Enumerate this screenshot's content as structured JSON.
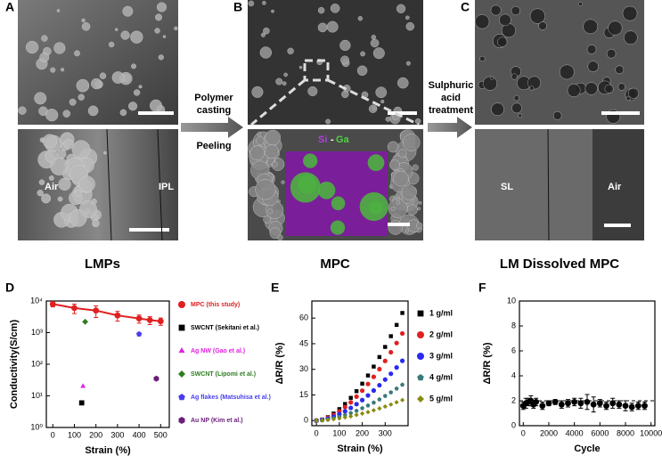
{
  "figure": {
    "panels": [
      {
        "label": "A",
        "caption": "LMPs",
        "image_labels": [
          "Air",
          "IPL"
        ]
      },
      {
        "label": "B",
        "caption": "MPC",
        "image_labels": [
          "Si",
          "-",
          "Ga"
        ]
      },
      {
        "label": "C",
        "caption": "LM Dissolved MPC",
        "image_labels": [
          "SL",
          "Air"
        ]
      }
    ],
    "arrows": [
      {
        "above": [
          "Polymer",
          "casting"
        ],
        "below": "Peeling"
      },
      {
        "above": [
          "Sulphuric",
          "acid",
          "treatment"
        ]
      }
    ]
  },
  "chart_data": [
    {
      "type": "scatter",
      "panel": "D",
      "x_label": "Strain (%)",
      "y_label": "Conductivity(S/cm)",
      "log_y": true,
      "xlim": [
        -30,
        540
      ],
      "xticks": [
        0,
        100,
        200,
        300,
        400,
        500
      ],
      "ylim": [
        1,
        10000
      ],
      "yticks": [
        {
          "value": 1,
          "label": "10⁰"
        },
        {
          "value": 10,
          "label": "10¹"
        },
        {
          "value": 100,
          "label": "10²"
        },
        {
          "value": 1000,
          "label": "10³"
        },
        {
          "value": 10000,
          "label": "10⁴"
        }
      ],
      "legend": "right",
      "series": [
        {
          "name": "MPC (this study)",
          "color": "#e02020",
          "marker": "circle",
          "line": true,
          "x": [
            0,
            100,
            200,
            300,
            400,
            450,
            500
          ],
          "values": [
            8000,
            6000,
            5000,
            3500,
            2800,
            2500,
            2300
          ],
          "errors": [
            1500,
            2000,
            2000,
            1200,
            800,
            700,
            600
          ]
        },
        {
          "name": "SWCNT (Sekitani et al.)",
          "color": "#000000",
          "marker": "square",
          "x": [
            134
          ],
          "values": [
            6
          ]
        },
        {
          "name": "Ag NW (Gao et al.)",
          "color": "#e020e0",
          "marker": "triangle",
          "x": [
            140
          ],
          "values": [
            20
          ]
        },
        {
          "name": "SWCNT (Lipomi et al.)",
          "color": "#2e7d20",
          "marker": "diamond",
          "x": [
            150
          ],
          "values": [
            2200
          ]
        },
        {
          "name": "Ag flakes (Matsuhisa et al.)",
          "color": "#4a3cf0",
          "marker": "pentagon",
          "x": [
            400
          ],
          "values": [
            900
          ]
        },
        {
          "name": "Au NP (Kim et al.)",
          "color": "#6a1e7a",
          "marker": "hexagon",
          "x": [
            480
          ],
          "values": [
            35
          ]
        }
      ]
    },
    {
      "type": "scatter",
      "panel": "E",
      "x_label": "Strain (%)",
      "y_label": "ΔR/R (%)",
      "xlim": [
        -20,
        400
      ],
      "xticks": [
        0,
        100,
        200,
        300
      ],
      "ylim": [
        -3,
        70
      ],
      "yticks": [
        0,
        15,
        30,
        45,
        60
      ],
      "legend": "right",
      "series": [
        {
          "name": "1 g/ml",
          "color": "#000000",
          "marker": "square",
          "x": [
            0,
            25,
            50,
            75,
            100,
            125,
            150,
            175,
            200,
            225,
            250,
            275,
            300,
            325,
            350,
            375
          ],
          "values": [
            0,
            0.6,
            2.0,
            4.1,
            6.7,
            9.7,
            13.3,
            17.2,
            21.6,
            26.4,
            31.6,
            37.2,
            43.1,
            49.4,
            56.0,
            63
          ]
        },
        {
          "name": "2 g/ml",
          "color": "#e02020",
          "marker": "circle",
          "x": [
            0,
            25,
            50,
            75,
            100,
            125,
            150,
            175,
            200,
            225,
            250,
            275,
            300,
            325,
            350,
            375
          ],
          "values": [
            0,
            0.5,
            1.7,
            3.3,
            5.4,
            7.9,
            10.7,
            14.0,
            17.5,
            21.4,
            25.6,
            30.1,
            34.9,
            40.0,
            45.4,
            51
          ]
        },
        {
          "name": "3 g/ml",
          "color": "#2a2af0",
          "marker": "circle",
          "x": [
            0,
            25,
            50,
            75,
            100,
            125,
            150,
            175,
            200,
            225,
            250,
            275,
            300,
            325,
            350,
            375
          ],
          "values": [
            0,
            0.4,
            1.1,
            2.3,
            3.7,
            5.4,
            7.4,
            9.6,
            12.0,
            14.7,
            17.6,
            20.7,
            24.0,
            27.4,
            31.1,
            35
          ]
        },
        {
          "name": "4 g/ml",
          "color": "#3a7a7a",
          "marker": "pentagon",
          "x": [
            0,
            25,
            50,
            75,
            100,
            125,
            150,
            175,
            200,
            225,
            250,
            275,
            300,
            325,
            350,
            375
          ],
          "values": [
            0,
            0.2,
            0.7,
            1.4,
            2.2,
            3.2,
            4.4,
            5.7,
            7.2,
            8.8,
            10.5,
            12.4,
            14.4,
            16.5,
            18.7,
            21
          ]
        },
        {
          "name": "5 g/ml",
          "color": "#8a8a10",
          "marker": "diamond",
          "x": [
            0,
            25,
            50,
            75,
            100,
            125,
            150,
            175,
            200,
            225,
            250,
            275,
            300,
            325,
            350,
            375
          ],
          "values": [
            0,
            0.1,
            0.4,
            0.8,
            1.3,
            1.9,
            2.5,
            3.3,
            4.1,
            5.0,
            6.0,
            7.1,
            8.2,
            9.4,
            10.7,
            12
          ]
        }
      ]
    },
    {
      "type": "scatter",
      "panel": "F",
      "x_label": "Cycle",
      "y_label": "ΔR/R (%)",
      "xlim": [
        -300,
        10300
      ],
      "xticks": [
        0,
        2000,
        4000,
        6000,
        8000,
        10000
      ],
      "ylim": [
        0,
        10
      ],
      "yticks": [
        0,
        2,
        4,
        6,
        8,
        10
      ],
      "ref_line": 2,
      "series": [
        {
          "color": "#000000",
          "marker": "circle",
          "x": [
            0,
            200,
            400,
            600,
            800,
            1000,
            1500,
            2000,
            2500,
            3000,
            3500,
            4000,
            4500,
            5000,
            5500,
            6000,
            6500,
            7000,
            7500,
            8000,
            8500,
            9000,
            9500
          ],
          "values": [
            1.6,
            1.8,
            1.9,
            2.0,
            1.7,
            1.9,
            1.6,
            1.8,
            1.9,
            1.7,
            1.8,
            1.9,
            1.8,
            1.9,
            1.7,
            1.8,
            1.6,
            1.8,
            1.7,
            1.6,
            1.5,
            1.6,
            1.6
          ],
          "errors": [
            0.3,
            0.4,
            0.3,
            0.4,
            0.3,
            0.3,
            0.3,
            0.2,
            0.2,
            0.3,
            0.3,
            0.3,
            0.4,
            0.6,
            0.6,
            0.3,
            0.3,
            0.4,
            0.3,
            0.4,
            0.3,
            0.3,
            0.3
          ]
        }
      ]
    }
  ]
}
